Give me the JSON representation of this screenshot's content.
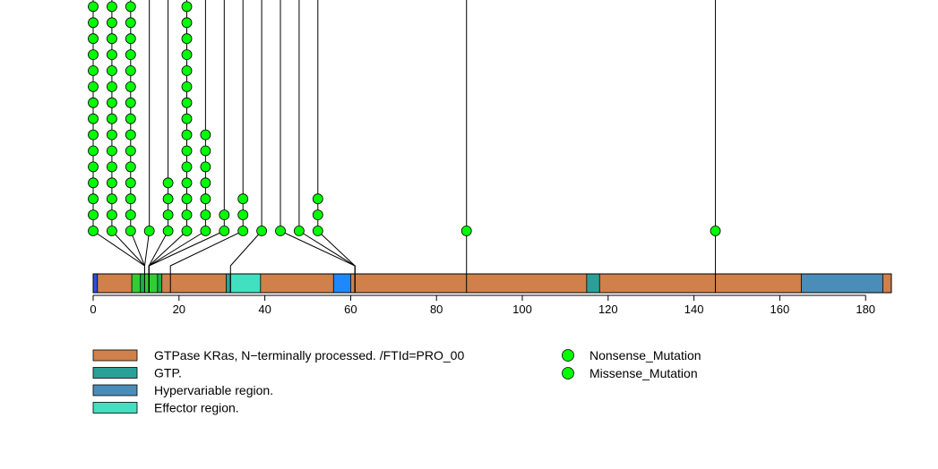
{
  "chart_data": {
    "type": "lollipop",
    "title": "",
    "xlabel": "",
    "ylabel": "",
    "xlim": [
      0,
      186
    ],
    "xticks": [
      0,
      20,
      40,
      60,
      80,
      100,
      120,
      140,
      160,
      180
    ],
    "xtick_labels": [
      "0",
      "20",
      "40",
      "60",
      "80",
      "100",
      "120",
      "140",
      "160",
      "180"
    ],
    "colors": {
      "backbone": "#D0804A",
      "mutation": "#00FF00"
    },
    "domains": [
      {
        "start": 0,
        "end": 1,
        "color": "#2D4FE0"
      },
      {
        "start": 9,
        "end": 16,
        "color": "#33CC33"
      },
      {
        "start": 11,
        "end": 12,
        "color": "#1AAE4A"
      },
      {
        "start": 15,
        "end": 16,
        "color": "#1AAE4A"
      },
      {
        "start": 31,
        "end": 32,
        "color": "#26A69A"
      },
      {
        "start": 32,
        "end": 39,
        "color": "#40E0C0"
      },
      {
        "start": 56,
        "end": 60,
        "color": "#1E88FF"
      },
      {
        "start": 115,
        "end": 118,
        "color": "#2AA198"
      },
      {
        "start": 165,
        "end": 184,
        "color": "#4A8DB8"
      }
    ],
    "mutations": [
      {
        "position": 12,
        "count": 15,
        "col": 0
      },
      {
        "position": 12,
        "count": 15,
        "col": 1
      },
      {
        "position": 12,
        "count": 15,
        "col": 2
      },
      {
        "position": 12,
        "count": 1,
        "col": 3
      },
      {
        "position": 13,
        "count": 4,
        "col": 4
      },
      {
        "position": 13,
        "count": 15,
        "col": 5
      },
      {
        "position": 13,
        "count": 7,
        "col": 6
      },
      {
        "position": 13,
        "count": 2,
        "col": 7
      },
      {
        "position": 18,
        "count": 3,
        "col": 8
      },
      {
        "position": 32,
        "count": 1,
        "col": 9
      },
      {
        "position": 61,
        "count": 1,
        "col": 10
      },
      {
        "position": 61,
        "count": 1,
        "col": 11
      },
      {
        "position": 61,
        "count": 3,
        "col": 12
      },
      {
        "position": 87,
        "count": 1,
        "col": null
      },
      {
        "position": 145,
        "count": 1,
        "col": null
      }
    ],
    "legend_domains": [
      {
        "label": "GTPase KRas, N−terminally processed. /FTId=PRO_00",
        "color": "#D0804A"
      },
      {
        "label": "GTP.",
        "color": "#2AA198"
      },
      {
        "label": "Hypervariable region.",
        "color": "#4A8DB8"
      },
      {
        "label": "Effector region.",
        "color": "#40E0C0"
      }
    ],
    "legend_mutations": [
      {
        "label": "Nonsense_Mutation",
        "color": "#00FF00"
      },
      {
        "label": "Missense_Mutation",
        "color": "#00FF00"
      }
    ]
  }
}
